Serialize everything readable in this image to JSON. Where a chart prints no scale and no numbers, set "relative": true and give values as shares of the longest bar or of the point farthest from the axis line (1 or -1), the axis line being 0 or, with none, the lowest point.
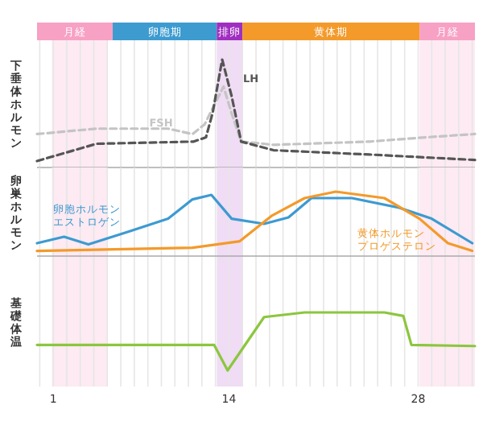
{
  "chart_data": [
    {
      "type": "bar",
      "orientation": "horizontal",
      "categories": [
        null
      ],
      "xlim": [
        -0.2,
        32.2
      ],
      "tick_labels": false,
      "series": [
        {
          "name": "月経",
          "color": "#f7a1c4",
          "base": [
            -0.2
          ],
          "values": [
            5.6
          ]
        },
        {
          "name": "卵胞期",
          "color": "#3d9bd0",
          "base": [
            5.4
          ],
          "values": [
            7.7
          ]
        },
        {
          "name": "排卵",
          "color": "#a02ec0",
          "base": [
            13.1
          ],
          "values": [
            1.9
          ]
        },
        {
          "name": "黄体期",
          "color": "#f39a2b",
          "base": [
            15.0
          ],
          "values": [
            13.1
          ]
        },
        {
          "name": "月経",
          "color": "#f7a1c4",
          "base": [
            28.1
          ],
          "values": [
            4.1
          ]
        }
      ]
    },
    {
      "type": "line",
      "relative": true,
      "ylabel": "下垂体ホルモン",
      "xlim": [
        -0.2,
        32.2
      ],
      "tick_labels": false,
      "grid": "x",
      "line_style": "dashed",
      "xticks": [
        {
          "value": 0,
          "label": null
        },
        1,
        {
          "value": 2,
          "label": null
        },
        {
          "value": 3,
          "label": null
        },
        {
          "value": 4,
          "label": null
        },
        {
          "value": 5,
          "label": null
        },
        {
          "value": 6,
          "label": null
        },
        {
          "value": 7,
          "label": null
        },
        {
          "value": 8,
          "label": null
        },
        {
          "value": 9,
          "label": null
        },
        {
          "value": 10,
          "label": null
        },
        {
          "value": 11,
          "label": null
        },
        {
          "value": 12,
          "label": null
        },
        {
          "value": 13,
          "label": null
        },
        14,
        {
          "value": 15,
          "label": null
        },
        {
          "value": 16,
          "label": null
        },
        {
          "value": 17,
          "label": null
        },
        {
          "value": 18,
          "label": null
        },
        {
          "value": 19,
          "label": null
        },
        {
          "value": 20,
          "label": null
        },
        {
          "value": 21,
          "label": null
        },
        {
          "value": 22,
          "label": null
        },
        {
          "value": 23,
          "label": null
        },
        {
          "value": 24,
          "label": null
        },
        {
          "value": 25,
          "label": null
        },
        {
          "value": 26,
          "label": null
        },
        {
          "value": 27,
          "label": null
        },
        28,
        {
          "value": 29,
          "label": null
        },
        {
          "value": 30,
          "label": null
        },
        {
          "value": 31,
          "label": null
        },
        {
          "value": 32,
          "label": null
        }
      ],
      "bands": [
        {
          "axis": "x",
          "from": 0.9,
          "to": 5.0,
          "color": "#fdeaf2"
        },
        {
          "axis": "x",
          "from": 13.1,
          "to": 15.0,
          "color": "#f0dcf4"
        },
        {
          "axis": "x",
          "from": 28.1,
          "to": 32.2,
          "color": "#fdeaf2"
        }
      ],
      "series": [
        {
          "name": "FSH",
          "color": "#c4c4c4",
          "x": [
            -0.2,
            4.2,
            9.5,
            11.3,
            12.2,
            13.6,
            14.2,
            14.9,
            17.3,
            24.4,
            28.6,
            32.2
          ],
          "values": [
            0.31,
            0.36,
            0.36,
            0.31,
            0.4,
            0.75,
            0.5,
            0.24,
            0.21,
            0.24,
            0.28,
            0.31
          ]
        },
        {
          "name": "LH",
          "color": "#555555",
          "x": [
            -0.2,
            4.2,
            11.4,
            12.3,
            12.8,
            13.5,
            14.2,
            14.9,
            17.3,
            24.4,
            32.2
          ],
          "values": [
            0.06,
            0.22,
            0.24,
            0.28,
            0.51,
            1,
            0.66,
            0.24,
            0.16,
            0.12,
            0.07
          ]
        }
      ]
    },
    {
      "type": "line",
      "relative": true,
      "ylabel": "卵巣ホルモン",
      "xlim": [
        -0.2,
        32.2
      ],
      "tick_labels": false,
      "grid": "x",
      "line_style": "solid",
      "xticks": [
        {
          "value": 0,
          "label": null
        },
        1,
        {
          "value": 2,
          "label": null
        },
        {
          "value": 3,
          "label": null
        },
        {
          "value": 4,
          "label": null
        },
        {
          "value": 5,
          "label": null
        },
        {
          "value": 6,
          "label": null
        },
        {
          "value": 7,
          "label": null
        },
        {
          "value": 8,
          "label": null
        },
        {
          "value": 9,
          "label": null
        },
        {
          "value": 10,
          "label": null
        },
        {
          "value": 11,
          "label": null
        },
        {
          "value": 12,
          "label": null
        },
        {
          "value": 13,
          "label": null
        },
        14,
        {
          "value": 15,
          "label": null
        },
        {
          "value": 16,
          "label": null
        },
        {
          "value": 17,
          "label": null
        },
        {
          "value": 18,
          "label": null
        },
        {
          "value": 19,
          "label": null
        },
        {
          "value": 20,
          "label": null
        },
        {
          "value": 21,
          "label": null
        },
        {
          "value": 22,
          "label": null
        },
        {
          "value": 23,
          "label": null
        },
        {
          "value": 24,
          "label": null
        },
        {
          "value": 25,
          "label": null
        },
        {
          "value": 26,
          "label": null
        },
        {
          "value": 27,
          "label": null
        },
        28,
        {
          "value": 29,
          "label": null
        },
        {
          "value": 30,
          "label": null
        },
        {
          "value": 31,
          "label": null
        },
        {
          "value": 32,
          "label": null
        }
      ],
      "bands": [
        {
          "axis": "x",
          "from": 0.9,
          "to": 5.0,
          "color": "#fdeaf2"
        },
        {
          "axis": "x",
          "from": 13.1,
          "to": 15.0,
          "color": "#f0dcf4"
        },
        {
          "axis": "x",
          "from": 28.1,
          "to": 32.2,
          "color": "#fdeaf2"
        }
      ],
      "series": [
        {
          "name": "卵胞ホルモンエストロゲン",
          "color": "#3d9ad1",
          "x": [
            -0.2,
            1.8,
            3.6,
            6.6,
            9.5,
            11.3,
            12.7,
            14.2,
            16.6,
            18.4,
            20.1,
            23.1,
            26.6,
            29.0,
            32.0
          ],
          "values": [
            0.2,
            0.3,
            0.18,
            0.38,
            0.58,
            0.88,
            0.95,
            0.58,
            0.5,
            0.6,
            0.9,
            0.9,
            0.75,
            0.58,
            0.2
          ]
        },
        {
          "name": "黄体ホルモンプロゲステロン",
          "color": "#f39a2b",
          "x": [
            -0.2,
            11.3,
            14.8,
            17.2,
            19.6,
            21.9,
            25.5,
            28.1,
            30.2,
            32.0
          ],
          "values": [
            0.08,
            0.13,
            0.23,
            0.63,
            0.9,
            1,
            0.9,
            0.58,
            0.2,
            0.08
          ]
        }
      ]
    },
    {
      "type": "line",
      "relative": true,
      "ylabel": "基礎体温",
      "xlim": [
        -0.2,
        32.2
      ],
      "tick_labels": "x",
      "grid": "x",
      "line_style": "solid",
      "xticks": [
        {
          "value": 0,
          "label": null
        },
        1,
        {
          "value": 2,
          "label": null
        },
        {
          "value": 3,
          "label": null
        },
        {
          "value": 4,
          "label": null
        },
        {
          "value": 5,
          "label": null
        },
        {
          "value": 6,
          "label": null
        },
        {
          "value": 7,
          "label": null
        },
        {
          "value": 8,
          "label": null
        },
        {
          "value": 9,
          "label": null
        },
        {
          "value": 10,
          "label": null
        },
        {
          "value": 11,
          "label": null
        },
        {
          "value": 12,
          "label": null
        },
        {
          "value": 13,
          "label": null
        },
        14,
        {
          "value": 15,
          "label": null
        },
        {
          "value": 16,
          "label": null
        },
        {
          "value": 17,
          "label": null
        },
        {
          "value": 18,
          "label": null
        },
        {
          "value": 19,
          "label": null
        },
        {
          "value": 20,
          "label": null
        },
        {
          "value": 21,
          "label": null
        },
        {
          "value": 22,
          "label": null
        },
        {
          "value": 23,
          "label": null
        },
        {
          "value": 24,
          "label": null
        },
        {
          "value": 25,
          "label": null
        },
        {
          "value": 26,
          "label": null
        },
        {
          "value": 27,
          "label": null
        },
        28,
        {
          "value": 29,
          "label": null
        },
        {
          "value": 30,
          "label": null
        },
        {
          "value": 31,
          "label": null
        },
        {
          "value": 32,
          "label": null
        }
      ],
      "bands": [
        {
          "axis": "x",
          "from": 0.9,
          "to": 5.0,
          "color": "#fdeaf2"
        },
        {
          "axis": "x",
          "from": 13.1,
          "to": 15.0,
          "color": "#f0dcf4"
        },
        {
          "axis": "x",
          "from": 28.1,
          "to": 32.2,
          "color": "#fdeaf2"
        }
      ],
      "series": [
        {
          "color": "#8cc63f",
          "x": [
            -0.2,
            12.9,
            13.9,
            16.6,
            19.6,
            25.5,
            26.9,
            27.5,
            32.2
          ],
          "values": [
            0.44,
            0.44,
            0,
            0.92,
            1,
            1,
            0.94,
            0.44,
            0.42
          ]
        }
      ]
    }
  ]
}
